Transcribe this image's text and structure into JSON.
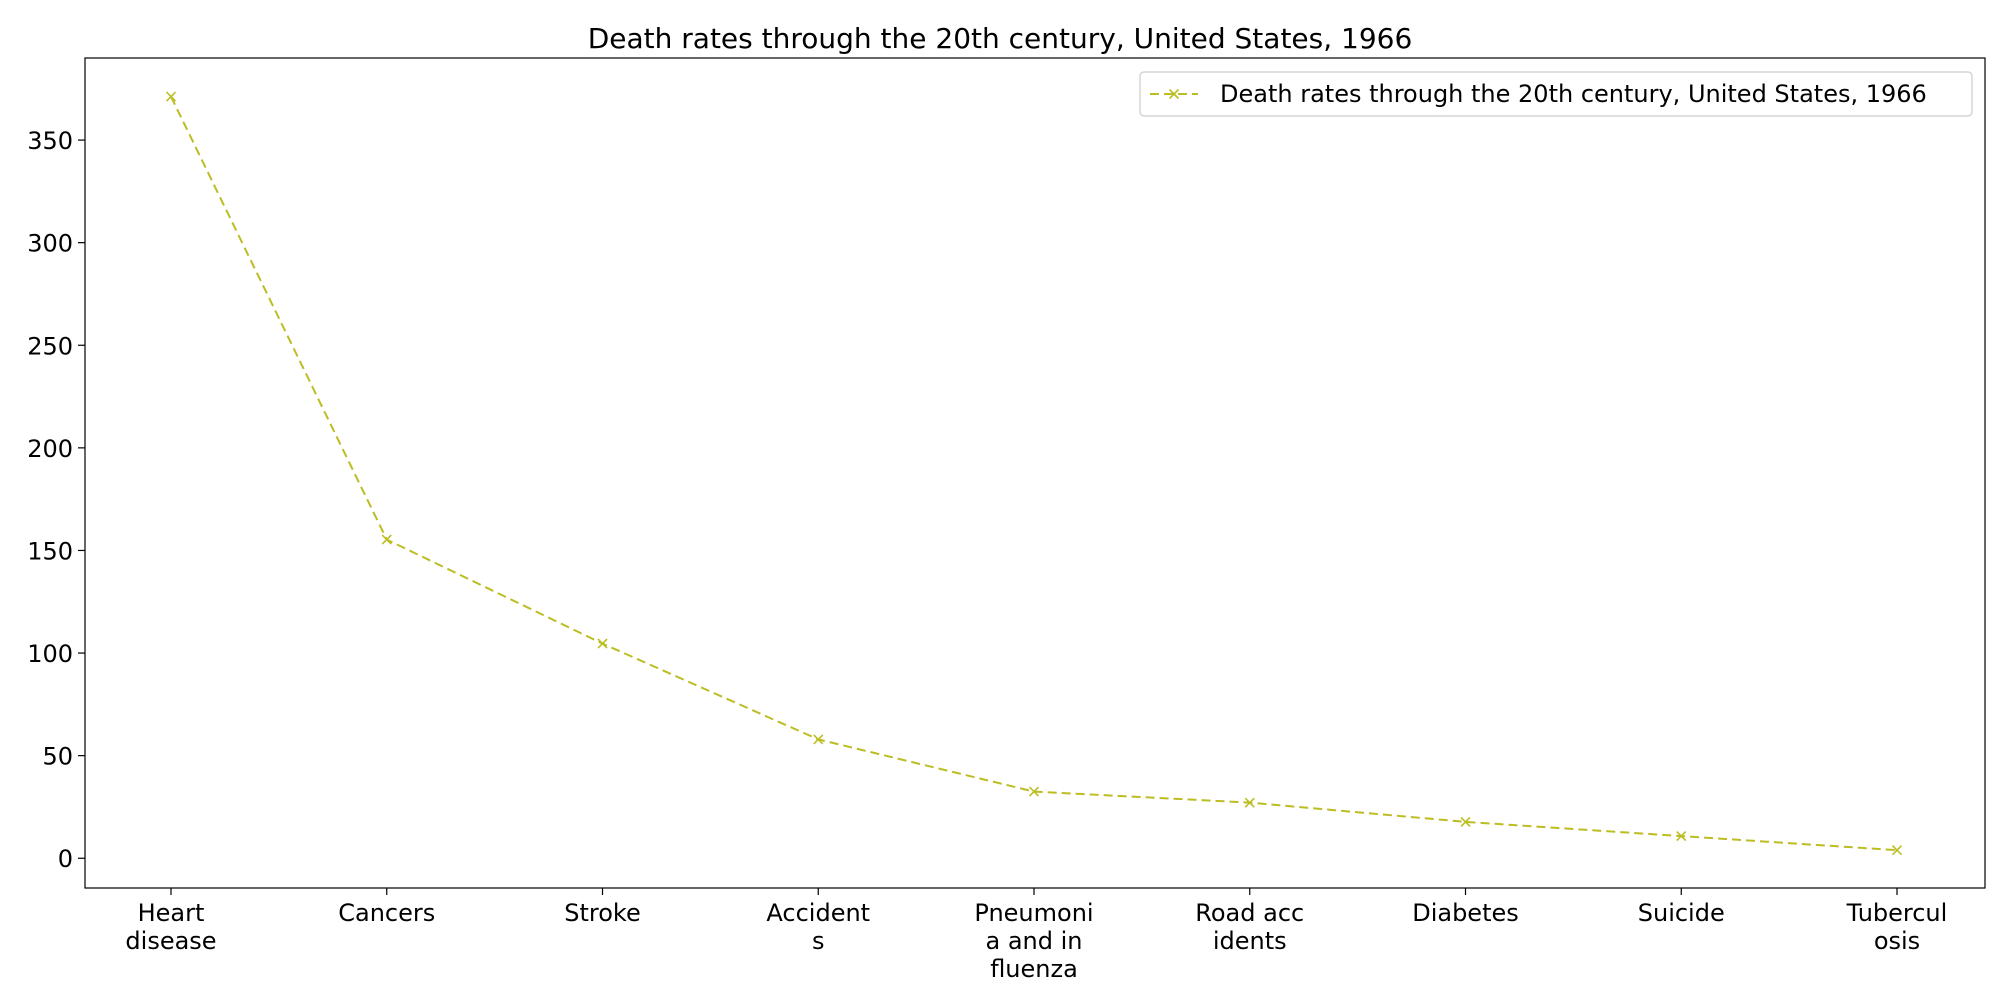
{
  "chart_data": {
    "type": "line",
    "title": "Death rates through the 20th century, United States, 1966",
    "xlabel": "",
    "ylabel": "",
    "categories": [
      [
        "Heart",
        "disease"
      ],
      [
        "Cancers"
      ],
      [
        "Stroke"
      ],
      [
        "Accident",
        "s"
      ],
      [
        "Pneumoni",
        "a and in",
        "fluenza"
      ],
      [
        "Road acc",
        "idents"
      ],
      [
        "Diabetes"
      ],
      [
        "Suicide"
      ],
      [
        "Tubercul",
        "osis"
      ]
    ],
    "series": [
      {
        "name": "Death rates through the 20th century, United States, 1966",
        "values": [
          371.2,
          155.3,
          104.6,
          57.9,
          32.5,
          27.1,
          17.7,
          10.8,
          3.9
        ],
        "color": "#bcbd22",
        "line_style": "dashed",
        "marker": "x"
      }
    ],
    "ylim": [
      -14.5,
      390
    ],
    "yticks": [
      0,
      50,
      100,
      150,
      200,
      250,
      300,
      350
    ],
    "grid": false,
    "legend_position": "upper-right"
  }
}
